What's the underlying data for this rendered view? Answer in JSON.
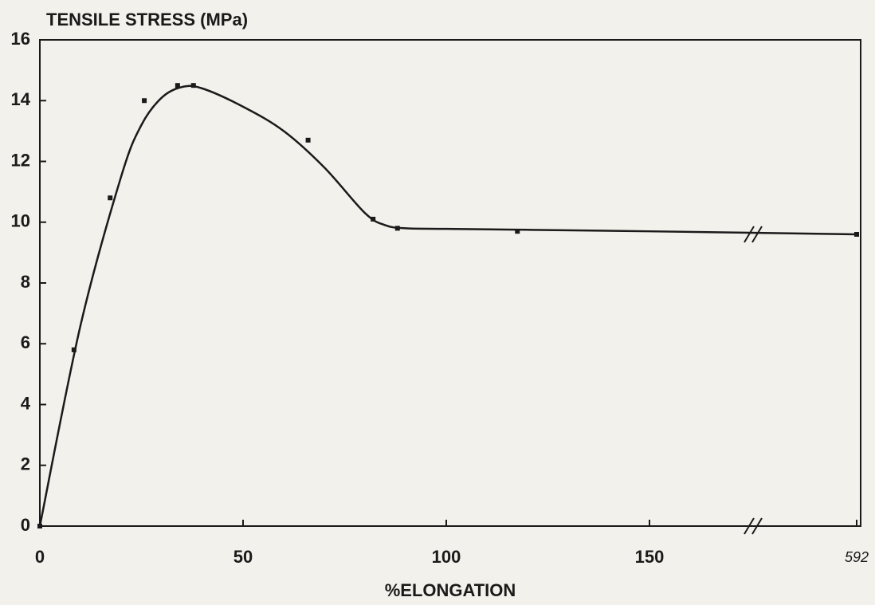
{
  "chart_data": {
    "type": "scatter-line",
    "y_label": "TENSILE STRESS (MPa)",
    "x_label": "%ELONGATION",
    "xlim": [
      0,
      592
    ],
    "xticks": [
      0,
      50,
      100,
      150,
      592
    ],
    "ylim": [
      0,
      16
    ],
    "yticks": [
      0,
      2,
      4,
      6,
      8,
      10,
      12,
      14,
      16
    ],
    "axis_break": true,
    "color": "#1a1a1a",
    "series": [
      {
        "kind": "points",
        "x": [
          0,
          8.4,
          17.3,
          25.7,
          33.9,
          37.8,
          66,
          82,
          88,
          117.5,
          592
        ],
        "values": [
          0,
          5.8,
          10.8,
          14.0,
          14.5,
          14.5,
          12.7,
          10.1,
          9.8,
          9.7,
          9.6
        ]
      },
      {
        "kind": "curve",
        "x": [
          0,
          10,
          20,
          25,
          30,
          35,
          40,
          50,
          60,
          70,
          80,
          85,
          90,
          100,
          120,
          150,
          592
        ],
        "values": [
          0,
          6.6,
          11.5,
          13.2,
          14.1,
          14.45,
          14.4,
          13.8,
          13.0,
          11.8,
          10.3,
          9.9,
          9.8,
          9.78,
          9.75,
          9.7,
          9.6
        ]
      }
    ]
  }
}
